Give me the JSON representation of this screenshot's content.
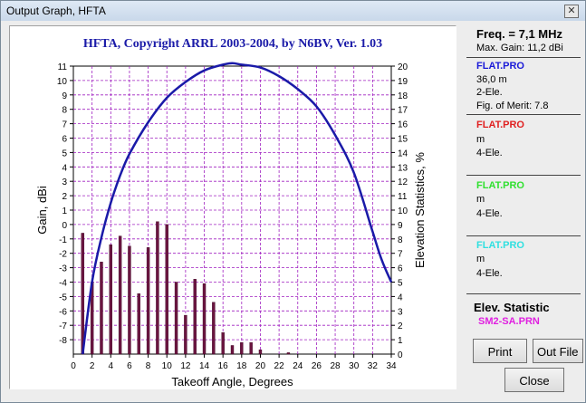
{
  "window": {
    "title": "Output Graph, HFTA"
  },
  "chart_data": {
    "type": "bar",
    "title": "HFTA, Copyright ARRL 2003-2004, by N6BV, Ver. 1.03",
    "xlabel": "Takeoff Angle, Degrees",
    "ylabel": "Gain, dBi",
    "y2label": "Elevation Statistics, %",
    "xlim": [
      0,
      34
    ],
    "ylim": [
      -9,
      11
    ],
    "y2lim": [
      0,
      20
    ],
    "x_ticks": [
      "0",
      "2",
      "4",
      "6",
      "8",
      "10",
      "12",
      "14",
      "16",
      "18",
      "20",
      "22",
      "24",
      "26",
      "28",
      "30",
      "32",
      "34"
    ],
    "y_ticks": [
      "11",
      "10",
      "9",
      "8",
      "7",
      "6",
      "5",
      "4",
      "3",
      "2",
      "1",
      "0",
      "-1",
      "-2",
      "-3",
      "-4",
      "-5",
      "-6",
      "-7",
      "-8"
    ],
    "y2_ticks": [
      "20",
      "19",
      "18",
      "17",
      "16",
      "15",
      "14",
      "13",
      "12",
      "11",
      "10",
      "9",
      "8",
      "7",
      "6",
      "5",
      "4",
      "3",
      "2",
      "1",
      "0"
    ],
    "bars": {
      "name": "Elevation Statistics",
      "x": [
        1,
        2,
        3,
        4,
        5,
        6,
        7,
        8,
        9,
        10,
        11,
        12,
        13,
        14,
        15,
        16,
        17,
        18,
        19,
        20,
        23
      ],
      "values": [
        8.4,
        5.0,
        6.4,
        7.6,
        8.2,
        7.5,
        4.2,
        7.4,
        9.2,
        9.0,
        5.0,
        2.7,
        5.2,
        4.9,
        3.6,
        1.5,
        0.6,
        0.8,
        0.8,
        0.3,
        0.1
      ]
    },
    "gain_curve": {
      "name": "FLAT.PRO",
      "x": [
        1,
        2,
        3,
        4,
        5,
        6,
        8,
        10,
        12,
        14,
        16,
        17,
        18,
        20,
        22,
        24,
        26,
        28,
        30,
        32,
        33,
        34
      ],
      "values": [
        -9.0,
        -4.0,
        -0.9,
        1.5,
        3.4,
        4.9,
        7.1,
        8.8,
        9.9,
        10.7,
        11.1,
        11.2,
        11.1,
        10.9,
        10.3,
        9.4,
        8.2,
        6.2,
        3.6,
        -0.5,
        -2.5,
        -4.0
      ]
    },
    "colors": {
      "gain": "#1a1aa8",
      "bars": "#6b1540",
      "grid": "#a020c0",
      "title": "#1a1aa8"
    }
  },
  "panel": {
    "freq": "Freq. = 7,1 MHz",
    "max_gain": "Max. Gain: 11,2 dBi",
    "antennas": [
      {
        "name": "FLAT.PRO",
        "color": "#1a1ad8",
        "lines": [
          "36,0 m",
          "2-Ele.",
          "Fig. of Merit:  7.8"
        ]
      },
      {
        "name": "FLAT.PRO",
        "color": "#e02020",
        "lines": [
          " m",
          "4-Ele."
        ]
      },
      {
        "name": "FLAT.PRO",
        "color": "#30e030",
        "lines": [
          " m",
          "4-Ele."
        ]
      },
      {
        "name": "FLAT.PRO",
        "color": "#30e0e0",
        "lines": [
          " m",
          "4-Ele."
        ]
      }
    ],
    "elev_title": "Elev. Statistic",
    "elev_file": "SM2-SA.PRN"
  },
  "buttons": {
    "print": "Print",
    "out_file": "Out File",
    "close": "Close"
  }
}
